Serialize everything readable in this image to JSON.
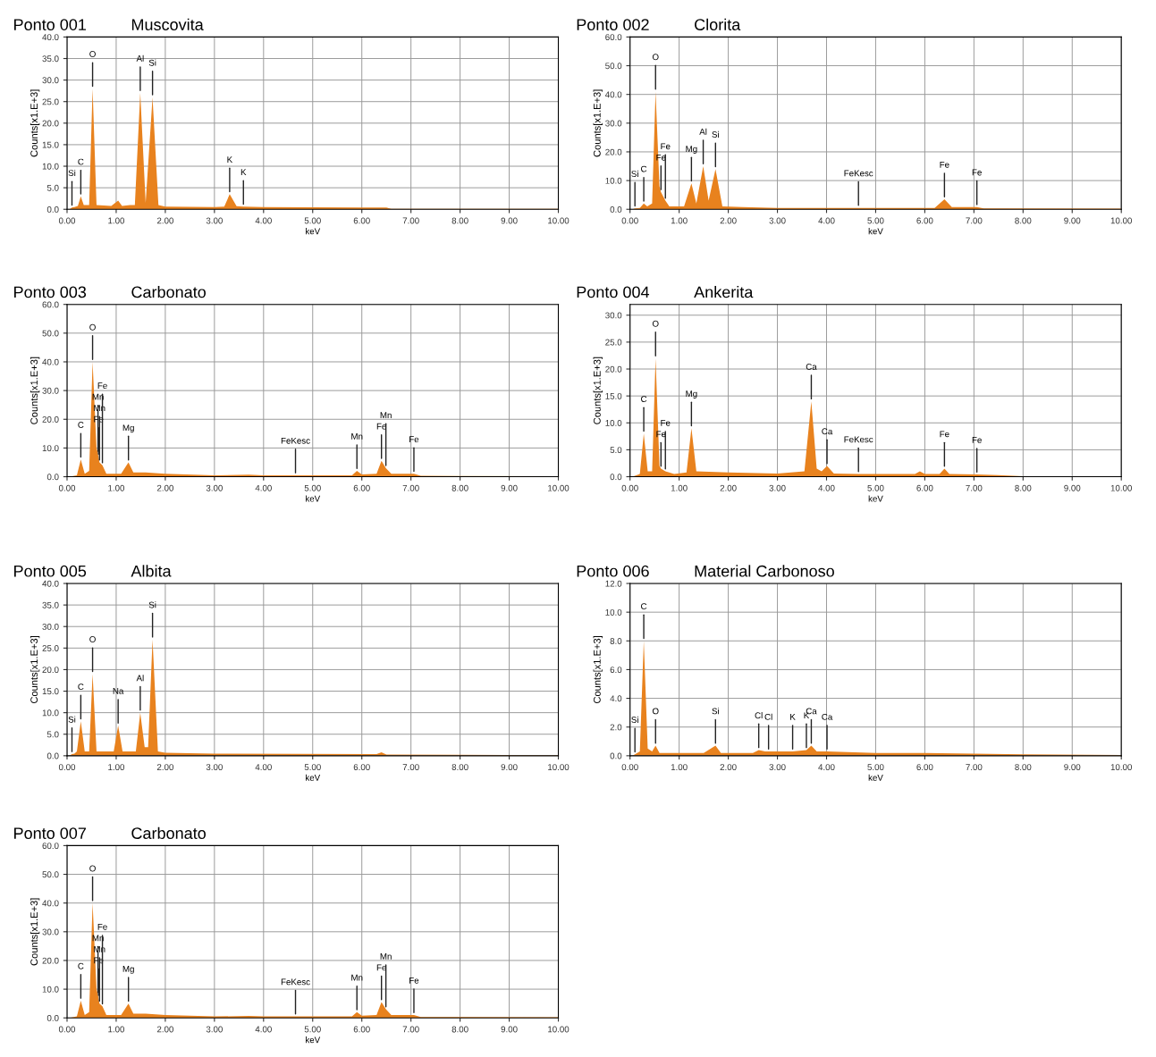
{
  "chart_data": [
    {
      "type": "area",
      "title": "Ponto 001",
      "subtitle": "Muscovita",
      "xlabel": "keV",
      "ylabel": "Counts[x1.E+3]",
      "color": "#e8821e",
      "grid": true,
      "x": [
        0.05,
        0.1,
        0.15,
        0.22,
        0.28,
        0.34,
        0.45,
        0.52,
        0.6,
        0.9,
        1.04,
        1.12,
        1.28,
        1.38,
        1.49,
        1.6,
        1.74,
        1.86,
        2.0,
        3.0,
        3.2,
        3.31,
        3.45,
        3.59,
        4.0,
        6.0,
        6.5,
        6.6,
        10
      ],
      "values": [
        0,
        0.4,
        0.5,
        0.8,
        3,
        1,
        1,
        28,
        1,
        0.8,
        2,
        0.8,
        1,
        1,
        27,
        1.5,
        26,
        1,
        0.6,
        0.5,
        0.6,
        3.5,
        0.7,
        0.6,
        0.5,
        0.4,
        0.4,
        0.1,
        0.1
      ],
      "xlim": [
        0,
        10
      ],
      "ylim": [
        0,
        40
      ],
      "xticks": [
        {
          "value": 0,
          "label": "0.00"
        },
        {
          "value": 1,
          "label": "1.00"
        },
        {
          "value": 2,
          "label": "2.00"
        },
        {
          "value": 3,
          "label": "3.00"
        },
        {
          "value": 4,
          "label": "4.00"
        },
        {
          "value": 5,
          "label": "5.00"
        },
        {
          "value": 6,
          "label": "6.00"
        },
        {
          "value": 7,
          "label": "7.00"
        },
        {
          "value": 8,
          "label": "8.00"
        },
        {
          "value": 9,
          "label": "9.00"
        },
        {
          "value": 10,
          "label": "10.00"
        }
      ],
      "yticks": [
        {
          "value": 0,
          "label": "0.0"
        },
        {
          "value": 5,
          "label": "5.0"
        },
        {
          "value": 10,
          "label": "10.0"
        },
        {
          "value": 15,
          "label": "15.0"
        },
        {
          "value": 20,
          "label": "20.0"
        },
        {
          "value": 25,
          "label": "25.0"
        },
        {
          "value": 30,
          "label": "30.0"
        },
        {
          "value": 35,
          "label": "35.0"
        },
        {
          "value": 40,
          "label": "40.0"
        }
      ],
      "annotations": [
        {
          "text": "Si",
          "x": 0.1,
          "y": 0.4
        },
        {
          "text": "C",
          "x": 0.28,
          "y": 3
        },
        {
          "text": "O",
          "x": 0.52,
          "y": 28
        },
        {
          "text": "Al",
          "x": 1.49,
          "y": 27
        },
        {
          "text": "Si",
          "x": 1.74,
          "y": 26
        },
        {
          "text": "K",
          "x": 3.31,
          "y": 3.5
        },
        {
          "text": "K",
          "x": 3.59,
          "y": 0.6
        }
      ]
    },
    {
      "type": "area",
      "title": "Ponto 002",
      "subtitle": "Clorita",
      "xlabel": "keV",
      "ylabel": "Counts[x1.E+3]",
      "color": "#e8821e",
      "grid": true,
      "x": [
        0.05,
        0.1,
        0.2,
        0.28,
        0.35,
        0.45,
        0.52,
        0.6,
        0.63,
        0.72,
        0.8,
        1.1,
        1.25,
        1.35,
        1.49,
        1.6,
        1.74,
        1.88,
        2.3,
        3,
        4.65,
        5.5,
        6.2,
        6.4,
        6.55,
        7.06,
        7.2,
        10
      ],
      "values": [
        0,
        0.3,
        0.5,
        2,
        1,
        2,
        41,
        8,
        6,
        3,
        1,
        1,
        9,
        2,
        15,
        3,
        14,
        1,
        0.8,
        0.5,
        0.5,
        0.5,
        0.5,
        3.5,
        0.8,
        0.8,
        0.3,
        0.2
      ],
      "xlim": [
        0,
        10
      ],
      "ylim": [
        0,
        60
      ],
      "xticks": [
        {
          "value": 0,
          "label": "0.00"
        },
        {
          "value": 1,
          "label": "1.00"
        },
        {
          "value": 2,
          "label": "2.00"
        },
        {
          "value": 3,
          "label": "3.00"
        },
        {
          "value": 4,
          "label": "4.00"
        },
        {
          "value": 5,
          "label": "5.00"
        },
        {
          "value": 6,
          "label": "6.00"
        },
        {
          "value": 7,
          "label": "7.00"
        },
        {
          "value": 8,
          "label": "8.00"
        },
        {
          "value": 9,
          "label": "9.00"
        },
        {
          "value": 10,
          "label": "10.00"
        }
      ],
      "yticks": [
        {
          "value": 0,
          "label": "0.0"
        },
        {
          "value": 10,
          "label": "10.0"
        },
        {
          "value": 20,
          "label": "20.0"
        },
        {
          "value": 30,
          "label": "30.0"
        },
        {
          "value": 40,
          "label": "40.0"
        },
        {
          "value": 50,
          "label": "50.0"
        },
        {
          "value": 60,
          "label": "60.0"
        }
      ],
      "annotations": [
        {
          "text": "Si",
          "x": 0.1,
          "y": 0.3
        },
        {
          "text": "C",
          "x": 0.28,
          "y": 2
        },
        {
          "text": "O",
          "x": 0.52,
          "y": 41
        },
        {
          "text": "Fe",
          "x": 0.63,
          "y": 6
        },
        {
          "text": "Fe",
          "x": 0.72,
          "y": 3
        },
        {
          "text": "Mg",
          "x": 1.25,
          "y": 9
        },
        {
          "text": "Al",
          "x": 1.49,
          "y": 15
        },
        {
          "text": "Si",
          "x": 1.74,
          "y": 14
        },
        {
          "text": "FeKesc",
          "x": 4.65,
          "y": 0.5
        },
        {
          "text": "Fe",
          "x": 6.4,
          "y": 3.5
        },
        {
          "text": "Fe",
          "x": 7.06,
          "y": 0.8
        }
      ]
    },
    {
      "type": "area",
      "title": "Ponto 003",
      "subtitle": "Carbonato",
      "xlabel": "keV",
      "ylabel": "Counts[x1.E+3]",
      "color": "#e8821e",
      "grid": true,
      "x": [
        0.05,
        0.2,
        0.28,
        0.36,
        0.45,
        0.52,
        0.6,
        0.63,
        0.64,
        0.66,
        0.72,
        0.8,
        1.1,
        1.25,
        1.35,
        1.6,
        2.0,
        3,
        3.7,
        4,
        4.65,
        5.8,
        5.9,
        6.0,
        6.3,
        6.4,
        6.49,
        6.6,
        7.06,
        7.2,
        10
      ],
      "values": [
        0,
        0.5,
        6,
        1,
        2,
        40,
        10,
        8,
        7,
        5,
        4,
        1,
        1,
        5,
        1.5,
        1.5,
        1,
        0.5,
        0.7,
        0.5,
        0.5,
        0.5,
        2,
        0.8,
        1,
        5.5,
        3,
        1,
        1,
        0.3,
        0.2
      ],
      "xlim": [
        0,
        10
      ],
      "ylim": [
        0,
        60
      ],
      "xticks": [
        {
          "value": 0,
          "label": "0.00"
        },
        {
          "value": 1,
          "label": "1.00"
        },
        {
          "value": 2,
          "label": "2.00"
        },
        {
          "value": 3,
          "label": "3.00"
        },
        {
          "value": 4,
          "label": "4.00"
        },
        {
          "value": 5,
          "label": "5.00"
        },
        {
          "value": 6,
          "label": "6.00"
        },
        {
          "value": 7,
          "label": "7.00"
        },
        {
          "value": 8,
          "label": "8.00"
        },
        {
          "value": 9,
          "label": "9.00"
        },
        {
          "value": 10,
          "label": "10.00"
        }
      ],
      "yticks": [
        {
          "value": 0,
          "label": "0.0"
        },
        {
          "value": 10,
          "label": "10.0"
        },
        {
          "value": 20,
          "label": "20.0"
        },
        {
          "value": 30,
          "label": "30.0"
        },
        {
          "value": 40,
          "label": "40.0"
        },
        {
          "value": 50,
          "label": "50.0"
        },
        {
          "value": 60,
          "label": "60.0"
        }
      ],
      "annotations": [
        {
          "text": "C",
          "x": 0.28,
          "y": 6
        },
        {
          "text": "O",
          "x": 0.52,
          "y": 40
        },
        {
          "text": "Fe",
          "x": 0.64,
          "y": 7
        },
        {
          "text": "Mn",
          "x": 0.66,
          "y": 5
        },
        {
          "text": "Mn",
          "x": 0.63,
          "y": 8
        },
        {
          "text": "Fe",
          "x": 0.72,
          "y": 4
        },
        {
          "text": "Mg",
          "x": 1.25,
          "y": 5
        },
        {
          "text": "FeKesc",
          "x": 4.65,
          "y": 0.5
        },
        {
          "text": "Mn",
          "x": 5.9,
          "y": 2
        },
        {
          "text": "Fe",
          "x": 6.4,
          "y": 5.5
        },
        {
          "text": "Mn",
          "x": 6.49,
          "y": 3
        },
        {
          "text": "Fe",
          "x": 7.06,
          "y": 1
        }
      ]
    },
    {
      "type": "area",
      "title": "Ponto 004",
      "subtitle": "Ankerita",
      "xlabel": "keV",
      "ylabel": "Counts[x1.E+3]",
      "color": "#e8821e",
      "grid": true,
      "x": [
        0.05,
        0.2,
        0.28,
        0.36,
        0.45,
        0.52,
        0.6,
        0.63,
        0.72,
        0.9,
        1.15,
        1.25,
        1.35,
        2,
        3,
        3.55,
        3.69,
        3.8,
        3.9,
        4.01,
        4.15,
        4.65,
        5.8,
        5.9,
        6.0,
        6.3,
        6.4,
        6.5,
        7.06,
        7.5,
        8,
        10
      ],
      "values": [
        0,
        0.5,
        8,
        1,
        1,
        22,
        2,
        1.5,
        1,
        0.5,
        0.8,
        9,
        1,
        0.8,
        0.6,
        1,
        14,
        1.5,
        1,
        2,
        0.6,
        0.5,
        0.5,
        1,
        0.5,
        0.5,
        1.5,
        0.5,
        0.4,
        0.3,
        0.1,
        0.1
      ],
      "xlim": [
        0,
        10
      ],
      "ylim": [
        0,
        32
      ],
      "xticks": [
        {
          "value": 0,
          "label": "0.00"
        },
        {
          "value": 1,
          "label": "1.00"
        },
        {
          "value": 2,
          "label": "2.00"
        },
        {
          "value": 3,
          "label": "3.00"
        },
        {
          "value": 4,
          "label": "4.00"
        },
        {
          "value": 5,
          "label": "5.00"
        },
        {
          "value": 6,
          "label": "6.00"
        },
        {
          "value": 7,
          "label": "7.00"
        },
        {
          "value": 8,
          "label": "8.00"
        },
        {
          "value": 9,
          "label": "9.00"
        },
        {
          "value": 10,
          "label": "10.00"
        }
      ],
      "yticks": [
        {
          "value": 0,
          "label": "0.0"
        },
        {
          "value": 5,
          "label": "5.0"
        },
        {
          "value": 10,
          "label": "10.0"
        },
        {
          "value": 15,
          "label": "15.0"
        },
        {
          "value": 20,
          "label": "20.0"
        },
        {
          "value": 25,
          "label": "25.0"
        },
        {
          "value": 30,
          "label": "30.0"
        }
      ],
      "annotations": [
        {
          "text": "C",
          "x": 0.28,
          "y": 8
        },
        {
          "text": "O",
          "x": 0.52,
          "y": 22
        },
        {
          "text": "Fe",
          "x": 0.63,
          "y": 1.5
        },
        {
          "text": "Fe",
          "x": 0.72,
          "y": 1
        },
        {
          "text": "Mg",
          "x": 1.25,
          "y": 9
        },
        {
          "text": "Ca",
          "x": 3.69,
          "y": 14
        },
        {
          "text": "Ca",
          "x": 4.01,
          "y": 2
        },
        {
          "text": "FeKesc",
          "x": 4.65,
          "y": 0.5
        },
        {
          "text": "Fe",
          "x": 6.4,
          "y": 1.5
        },
        {
          "text": "Fe",
          "x": 7.06,
          "y": 0.4
        }
      ]
    },
    {
      "type": "area",
      "title": "Ponto 005",
      "subtitle": "Albita",
      "xlabel": "keV",
      "ylabel": "Counts[x1.E+3]",
      "color": "#e8821e",
      "grid": true,
      "x": [
        0.05,
        0.1,
        0.15,
        0.2,
        0.28,
        0.36,
        0.45,
        0.52,
        0.6,
        0.95,
        1.04,
        1.13,
        1.4,
        1.49,
        1.58,
        1.65,
        1.74,
        1.85,
        2,
        3,
        6.3,
        6.4,
        6.5,
        10
      ],
      "values": [
        0,
        0.4,
        0.5,
        1,
        8,
        1,
        1,
        19,
        1,
        1,
        7,
        1,
        1,
        10,
        2,
        2,
        27,
        1,
        0.7,
        0.5,
        0.4,
        0.8,
        0.3,
        0.1
      ],
      "xlim": [
        0,
        10
      ],
      "ylim": [
        0,
        40
      ],
      "xticks": [
        {
          "value": 0,
          "label": "0.00"
        },
        {
          "value": 1,
          "label": "1.00"
        },
        {
          "value": 2,
          "label": "2.00"
        },
        {
          "value": 3,
          "label": "3.00"
        },
        {
          "value": 4,
          "label": "4.00"
        },
        {
          "value": 5,
          "label": "5.00"
        },
        {
          "value": 6,
          "label": "6.00"
        },
        {
          "value": 7,
          "label": "7.00"
        },
        {
          "value": 8,
          "label": "8.00"
        },
        {
          "value": 9,
          "label": "9.00"
        },
        {
          "value": 10,
          "label": "10.00"
        }
      ],
      "yticks": [
        {
          "value": 0,
          "label": "0.0"
        },
        {
          "value": 5,
          "label": "5.0"
        },
        {
          "value": 10,
          "label": "10.0"
        },
        {
          "value": 15,
          "label": "15.0"
        },
        {
          "value": 20,
          "label": "20.0"
        },
        {
          "value": 25,
          "label": "25.0"
        },
        {
          "value": 30,
          "label": "30.0"
        },
        {
          "value": 35,
          "label": "35.0"
        },
        {
          "value": 40,
          "label": "40.0"
        }
      ],
      "annotations": [
        {
          "text": "Si",
          "x": 0.1,
          "y": 0.4
        },
        {
          "text": "C",
          "x": 0.28,
          "y": 8
        },
        {
          "text": "O",
          "x": 0.52,
          "y": 19
        },
        {
          "text": "Na",
          "x": 1.04,
          "y": 7
        },
        {
          "text": "Al",
          "x": 1.49,
          "y": 10
        },
        {
          "text": "Si",
          "x": 1.74,
          "y": 27
        }
      ]
    },
    {
      "type": "area",
      "title": "Ponto 006",
      "subtitle": "Material Carbonoso",
      "xlabel": "keV",
      "ylabel": "Counts[x1.E+3]",
      "color": "#e8821e",
      "grid": true,
      "x": [
        0.05,
        0.1,
        0.2,
        0.28,
        0.36,
        0.45,
        0.52,
        0.6,
        1.5,
        1.74,
        1.85,
        2.5,
        2.62,
        2.75,
        2.82,
        3.31,
        3.59,
        3.69,
        3.8,
        4.01,
        5,
        6,
        8,
        10
      ],
      "values": [
        0,
        0.1,
        0.3,
        8,
        0.5,
        0.3,
        0.7,
        0.2,
        0.2,
        0.7,
        0.2,
        0.2,
        0.4,
        0.3,
        0.3,
        0.3,
        0.4,
        0.7,
        0.3,
        0.3,
        0.2,
        0.2,
        0.1,
        0.05
      ],
      "xlim": [
        0,
        10
      ],
      "ylim": [
        0,
        12
      ],
      "xticks": [
        {
          "value": 0,
          "label": "0.00"
        },
        {
          "value": 1,
          "label": "1.00"
        },
        {
          "value": 2,
          "label": "2.00"
        },
        {
          "value": 3,
          "label": "3.00"
        },
        {
          "value": 4,
          "label": "4.00"
        },
        {
          "value": 5,
          "label": "5.00"
        },
        {
          "value": 6,
          "label": "6.00"
        },
        {
          "value": 7,
          "label": "7.00"
        },
        {
          "value": 8,
          "label": "8.00"
        },
        {
          "value": 9,
          "label": "9.00"
        },
        {
          "value": 10,
          "label": "10.00"
        }
      ],
      "yticks": [
        {
          "value": 0,
          "label": "0.0"
        },
        {
          "value": 2,
          "label": "2.0"
        },
        {
          "value": 4,
          "label": "4.0"
        },
        {
          "value": 6,
          "label": "6.0"
        },
        {
          "value": 8,
          "label": "8.0"
        },
        {
          "value": 10,
          "label": "10.0"
        },
        {
          "value": 12,
          "label": "12.0"
        }
      ],
      "annotations": [
        {
          "text": "Si",
          "x": 0.1,
          "y": 0.1
        },
        {
          "text": "C",
          "x": 0.28,
          "y": 8
        },
        {
          "text": "O",
          "x": 0.52,
          "y": 0.7
        },
        {
          "text": "Si",
          "x": 1.74,
          "y": 0.7
        },
        {
          "text": "Cl",
          "x": 2.62,
          "y": 0.4
        },
        {
          "text": "Cl",
          "x": 2.82,
          "y": 0.3
        },
        {
          "text": "K",
          "x": 3.31,
          "y": 0.3
        },
        {
          "text": "K",
          "x": 3.59,
          "y": 0.4
        },
        {
          "text": "Ca",
          "x": 3.69,
          "y": 0.7
        },
        {
          "text": "Ca",
          "x": 4.01,
          "y": 0.3
        }
      ]
    },
    {
      "type": "area",
      "title": "Ponto 007",
      "subtitle": "Carbonato",
      "xlabel": "keV",
      "ylabel": "Counts[x1.E+3]",
      "color": "#e8821e",
      "grid": true,
      "x": [
        0.05,
        0.2,
        0.28,
        0.36,
        0.45,
        0.52,
        0.6,
        0.63,
        0.64,
        0.66,
        0.72,
        0.8,
        1.1,
        1.25,
        1.35,
        1.6,
        2.0,
        3,
        3.7,
        4,
        4.65,
        5.8,
        5.9,
        6.0,
        6.3,
        6.4,
        6.49,
        6.6,
        7.06,
        7.2,
        10
      ],
      "values": [
        0,
        0.5,
        6,
        1,
        2,
        40,
        10,
        8,
        7,
        5,
        4,
        1,
        1,
        5,
        1.5,
        1.5,
        1,
        0.5,
        0.7,
        0.5,
        0.5,
        0.5,
        2,
        0.8,
        1,
        5.5,
        3,
        1,
        1,
        0.3,
        0.2
      ],
      "xlim": [
        0,
        10
      ],
      "ylim": [
        0,
        60
      ],
      "xticks": [
        {
          "value": 0,
          "label": "0.00"
        },
        {
          "value": 1,
          "label": "1.00"
        },
        {
          "value": 2,
          "label": "2.00"
        },
        {
          "value": 3,
          "label": "3.00"
        },
        {
          "value": 4,
          "label": "4.00"
        },
        {
          "value": 5,
          "label": "5.00"
        },
        {
          "value": 6,
          "label": "6.00"
        },
        {
          "value": 7,
          "label": "7.00"
        },
        {
          "value": 8,
          "label": "8.00"
        },
        {
          "value": 9,
          "label": "9.00"
        },
        {
          "value": 10,
          "label": "10.00"
        }
      ],
      "yticks": [
        {
          "value": 0,
          "label": "0.0"
        },
        {
          "value": 10,
          "label": "10.0"
        },
        {
          "value": 20,
          "label": "20.0"
        },
        {
          "value": 30,
          "label": "30.0"
        },
        {
          "value": 40,
          "label": "40.0"
        },
        {
          "value": 50,
          "label": "50.0"
        },
        {
          "value": 60,
          "label": "60.0"
        }
      ],
      "annotations": [
        {
          "text": "C",
          "x": 0.28,
          "y": 6
        },
        {
          "text": "O",
          "x": 0.52,
          "y": 40
        },
        {
          "text": "Fe",
          "x": 0.64,
          "y": 7
        },
        {
          "text": "Mn",
          "x": 0.66,
          "y": 5
        },
        {
          "text": "Mn",
          "x": 0.63,
          "y": 8
        },
        {
          "text": "Fe",
          "x": 0.72,
          "y": 4
        },
        {
          "text": "Mg",
          "x": 1.25,
          "y": 5
        },
        {
          "text": "FeKesc",
          "x": 4.65,
          "y": 0.5
        },
        {
          "text": "Mn",
          "x": 5.9,
          "y": 2
        },
        {
          "text": "Fe",
          "x": 6.4,
          "y": 5.5
        },
        {
          "text": "Mn",
          "x": 6.49,
          "y": 3
        },
        {
          "text": "Fe",
          "x": 7.06,
          "y": 1
        }
      ]
    }
  ]
}
